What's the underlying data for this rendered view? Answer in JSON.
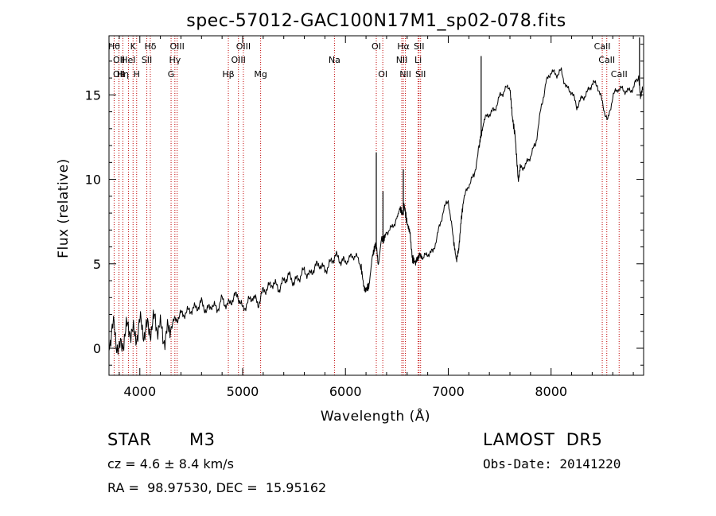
{
  "chart_data": {
    "type": "line",
    "title": "spec-57012-GAC100N17M1_sp02-078.fits",
    "xlabel": "Wavelength (Å)",
    "ylabel": "Flux (relative)",
    "xlim": [
      3700,
      8900
    ],
    "ylim": [
      -1.6,
      18.5
    ],
    "x_ticks": [
      4000,
      5000,
      6000,
      7000,
      8000
    ],
    "y_ticks": [
      0,
      5,
      10,
      15
    ],
    "grid": false,
    "series": [
      {
        "color": "#000000",
        "x": [
          3700,
          3750,
          3800,
          3850,
          3900,
          3950,
          4000,
          4050,
          4100,
          4150,
          4200,
          4250,
          4300,
          4350,
          4400,
          4450,
          4500,
          4550,
          4600,
          4650,
          4700,
          4750,
          4800,
          4850,
          4900,
          4950,
          5000,
          5050,
          5100,
          5150,
          5200,
          5250,
          5300,
          5350,
          5400,
          5450,
          5500,
          5550,
          5600,
          5650,
          5700,
          5750,
          5800,
          5850,
          5900,
          5950,
          6000,
          6050,
          6100,
          6150,
          6180,
          6200,
          6230,
          6260,
          6290,
          6300,
          6320,
          6350,
          6370,
          6400,
          6450,
          6500,
          6530,
          6560,
          6570,
          6600,
          6630,
          6650,
          6680,
          6700,
          6720,
          6750,
          6800,
          6850,
          6900,
          6950,
          7000,
          7050,
          7080,
          7100,
          7120,
          7150,
          7200,
          7250,
          7300,
          7320,
          7350,
          7400,
          7450,
          7500,
          7550,
          7600,
          7620,
          7650,
          7680,
          7700,
          7750,
          7800,
          7850,
          7900,
          7950,
          8000,
          8050,
          8100,
          8150,
          8200,
          8250,
          8300,
          8350,
          8400,
          8450,
          8500,
          8550,
          8600,
          8650,
          8700,
          8750,
          8800,
          8850,
          8870,
          8890
        ],
        "y": [
          0.5,
          1.2,
          -0.3,
          0.8,
          1.3,
          0.6,
          1.4,
          1.0,
          1.2,
          1.6,
          1.1,
          0.6,
          1.3,
          1.7,
          2.0,
          2.1,
          2.3,
          2.4,
          2.7,
          2.2,
          2.6,
          2.3,
          2.9,
          2.5,
          2.9,
          3.2,
          2.3,
          2.7,
          3.1,
          2.6,
          3.4,
          3.6,
          3.9,
          3.5,
          4.0,
          4.3,
          3.9,
          4.2,
          4.6,
          4.3,
          4.8,
          5.0,
          4.6,
          5.0,
          5.5,
          5.2,
          5.1,
          5.4,
          5.5,
          4.9,
          3.6,
          3.5,
          3.7,
          5.4,
          6.1,
          6.0,
          4.9,
          6.5,
          6.4,
          6.9,
          7.1,
          7.7,
          8.3,
          7.9,
          8.5,
          7.4,
          6.8,
          5.3,
          5.1,
          5.2,
          5.6,
          5.3,
          5.6,
          5.7,
          6.8,
          8.1,
          8.8,
          6.4,
          5.2,
          5.7,
          7.3,
          8.8,
          9.7,
          10.2,
          11.9,
          12.6,
          13.5,
          13.9,
          14.1,
          14.9,
          15.3,
          15.5,
          13.8,
          12.6,
          10.0,
          10.7,
          10.8,
          11.4,
          12.1,
          14.1,
          15.7,
          16.4,
          16.2,
          16.4,
          15.4,
          15.2,
          14.3,
          14.8,
          15.1,
          15.7,
          15.6,
          14.5,
          13.4,
          14.9,
          15.4,
          15.3,
          15.2,
          15.4,
          16.1,
          15.0,
          15.3
        ]
      }
    ],
    "spikes": [
      {
        "x": 6300,
        "y": 11.6
      },
      {
        "x": 6365,
        "y": 9.3
      },
      {
        "x": 6563,
        "y": 10.6
      },
      {
        "x": 7320,
        "y": 17.3
      },
      {
        "x": 8860,
        "y": 18.4
      }
    ],
    "line_markers": [
      {
        "x": 3750,
        "label": "Hθ",
        "row": 1
      },
      {
        "x": 3797,
        "label": "OII",
        "row": 2
      },
      {
        "x": 3797,
        "label": "OII",
        "row": 3
      },
      {
        "x": 3835,
        "label": "Hη",
        "row": 3
      },
      {
        "x": 3889,
        "label": "HeI",
        "row": 2
      },
      {
        "x": 3934,
        "label": "K",
        "row": 1
      },
      {
        "x": 3969,
        "label": "H",
        "row": 3
      },
      {
        "x": 4068,
        "label": "SII",
        "row": 2
      },
      {
        "x": 4102,
        "label": "Hδ",
        "row": 1
      },
      {
        "x": 4304,
        "label": "G",
        "row": 3
      },
      {
        "x": 4341,
        "label": "Hγ",
        "row": 2
      },
      {
        "x": 4363,
        "label": "OIII",
        "row": 1
      },
      {
        "x": 4861,
        "label": "Hβ",
        "row": 3
      },
      {
        "x": 4959,
        "label": "OIII",
        "row": 2
      },
      {
        "x": 5007,
        "label": "OIII",
        "row": 1
      },
      {
        "x": 5175,
        "label": "Mg",
        "row": 3
      },
      {
        "x": 5893,
        "label": "Na",
        "row": 2
      },
      {
        "x": 6300,
        "label": "OI",
        "row": 1
      },
      {
        "x": 6363,
        "label": "OI",
        "row": 3
      },
      {
        "x": 6548,
        "label": "NII",
        "row": 2
      },
      {
        "x": 6563,
        "label": "Hα",
        "row": 1
      },
      {
        "x": 6583,
        "label": "NII",
        "row": 3
      },
      {
        "x": 6707,
        "label": "Li",
        "row": 2
      },
      {
        "x": 6716,
        "label": "SII",
        "row": 1
      },
      {
        "x": 6731,
        "label": "SII",
        "row": 3
      },
      {
        "x": 8498,
        "label": "CaII",
        "row": 1
      },
      {
        "x": 8542,
        "label": "CaII",
        "row": 2
      },
      {
        "x": 8662,
        "label": "CaII",
        "row": 3
      }
    ],
    "marker_color": "#c00000",
    "line_color": "#000000"
  },
  "info": {
    "class": "STAR",
    "subclass": "M3",
    "survey": "LAMOST  DR5",
    "cz": "cz = 4.6 ± 8.4 km/s",
    "obs_date": "Obs-Date: 20141220",
    "coords": "RA =  98.97530, DEC =  15.95162"
  }
}
